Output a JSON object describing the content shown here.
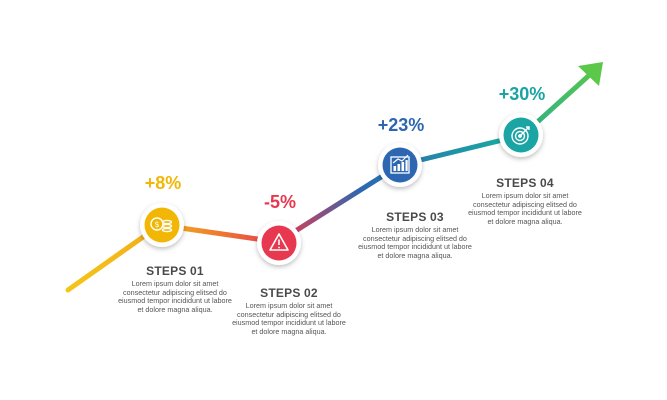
{
  "steps": [
    {
      "id": "01",
      "title": "STEPS 01",
      "percent": "+8%",
      "color": "#f2b705",
      "icon": "coins-icon",
      "description": "Lorem ipsum dolor sit amet consectetur adipiscing elitsed do eiusmod tempor incididunt ut labore et dolore magna aliqua."
    },
    {
      "id": "02",
      "title": "STEPS 02",
      "percent": "-5%",
      "color": "#e8384f",
      "icon": "warning-icon",
      "description": "Lorem ipsum dolor sit amet consectetur adipiscing elitsed do eiusmod tempor incididunt ut labore et dolore magna aliqua."
    },
    {
      "id": "03",
      "title": "STEPS 03",
      "percent": "+23%",
      "color": "#2e67b1",
      "icon": "bar-chart-icon",
      "description": "Lorem ipsum dolor sit amet consectetur adipiscing elitsed do eiusmod tempor incididunt ut labore et dolore magna aliqua."
    },
    {
      "id": "04",
      "title": "STEPS 04",
      "percent": "+30%",
      "color": "#1aa4a4",
      "icon": "target-icon",
      "description": "Lorem ipsum dolor sit amet consectetur adipiscing elitsed do eiusmod tempor incididunt ut labore et dolore magna aliqua."
    }
  ],
  "percent_colors": [
    "#f2b705",
    "#e8384f",
    "#2e67b1",
    "#1aa4a4"
  ]
}
